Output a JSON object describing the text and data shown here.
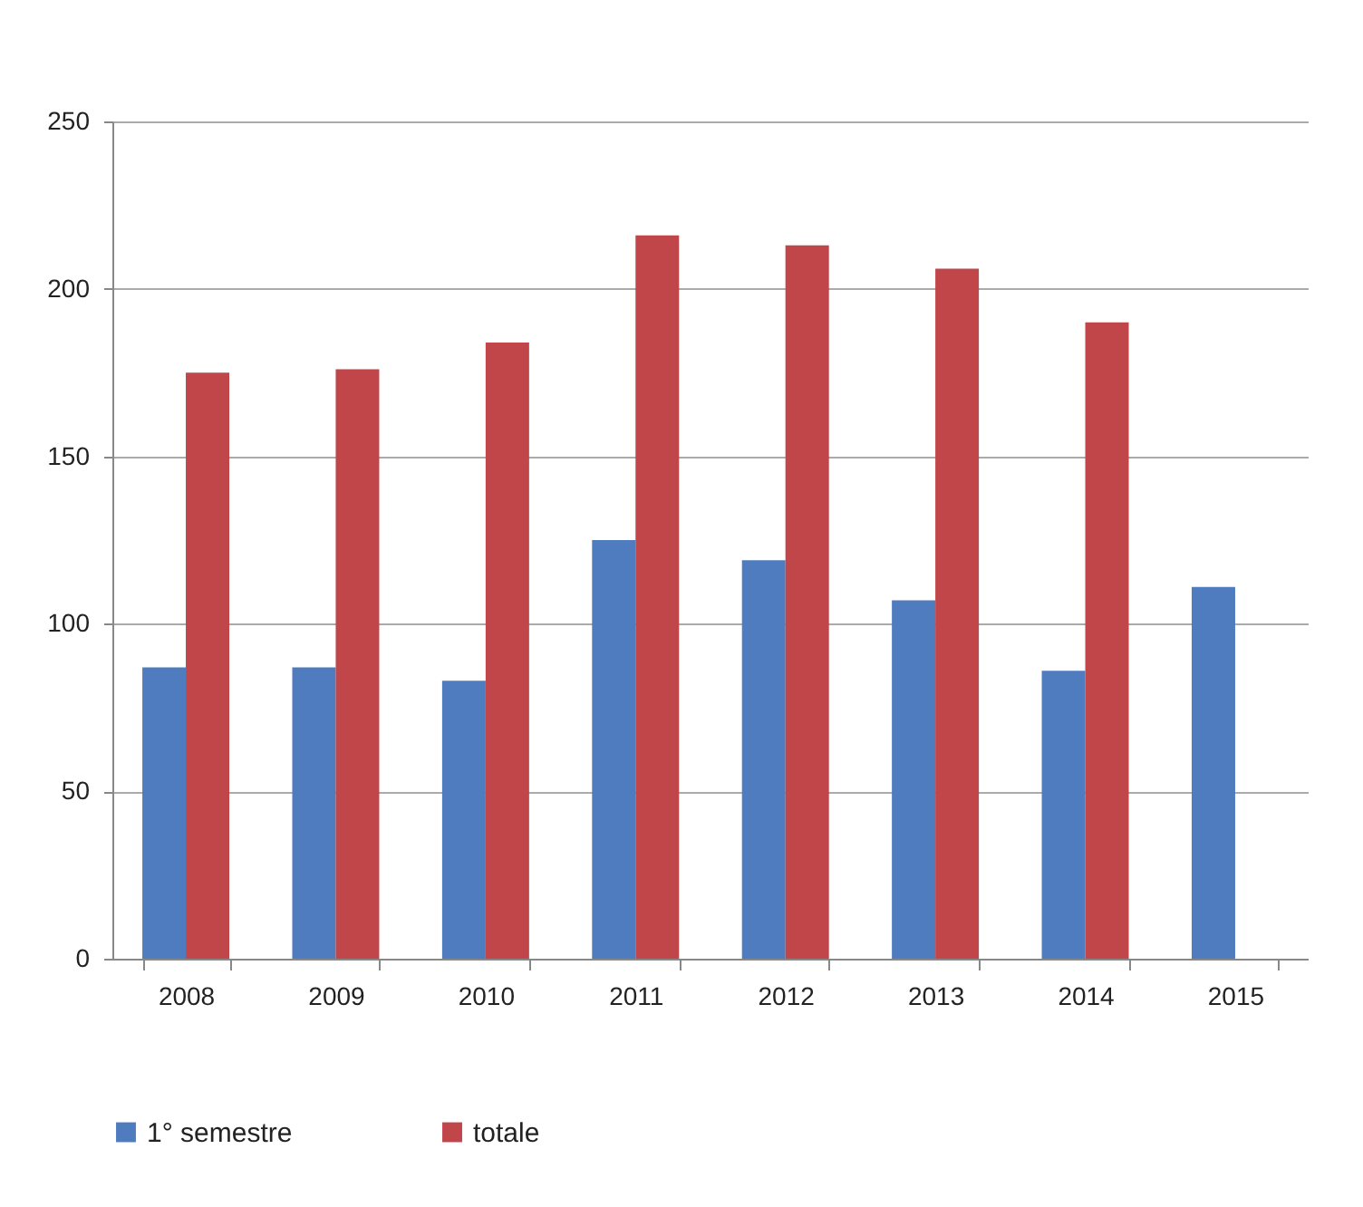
{
  "chart_data": {
    "type": "bar",
    "categories": [
      "2008",
      "2009",
      "2010",
      "2011",
      "2012",
      "2013",
      "2014",
      "2015"
    ],
    "series": [
      {
        "name": "1° semestre",
        "color": "#4f7bbf",
        "values": [
          87,
          87,
          83,
          125,
          119,
          107,
          86,
          111
        ]
      },
      {
        "name": "totale",
        "color": "#c0464a",
        "values": [
          175,
          176,
          184,
          216,
          213,
          206,
          190,
          null
        ]
      }
    ],
    "ylim": [
      0,
      250
    ],
    "yticks": [
      0,
      50,
      100,
      150,
      200,
      250
    ],
    "grid": "y",
    "legend": "bottom left"
  }
}
